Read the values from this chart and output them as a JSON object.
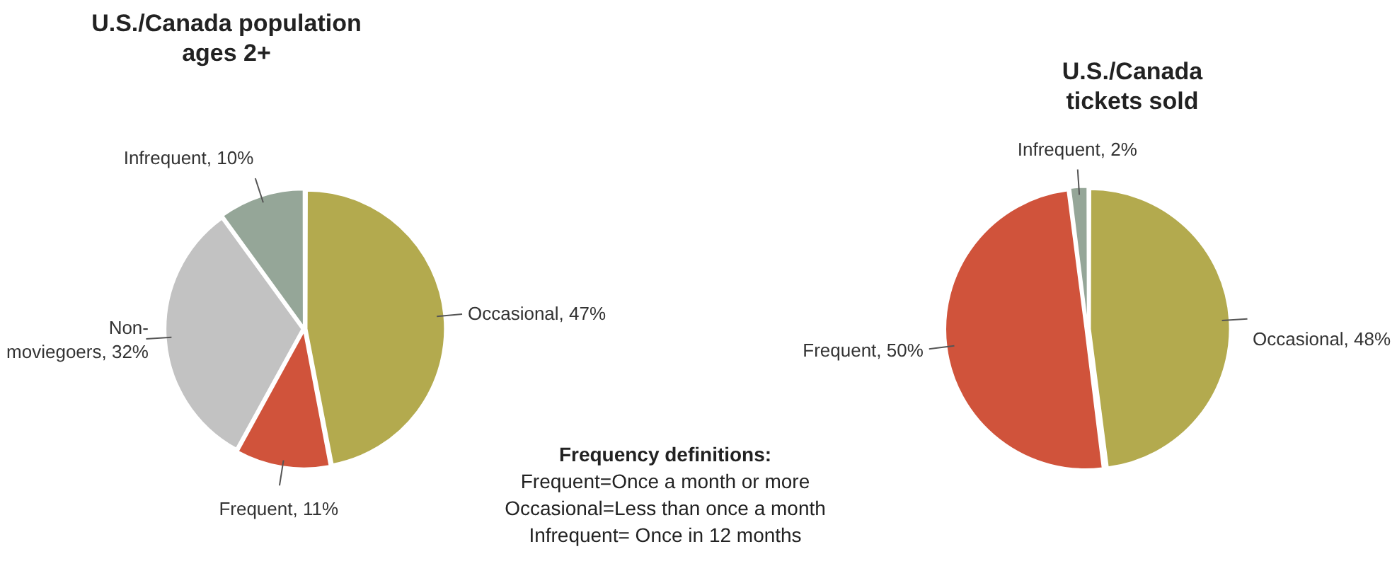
{
  "chart_data": [
    {
      "type": "pie",
      "title": "U.S./Canada population ages 2+",
      "categories": [
        "Occasional",
        "Frequent",
        "Non-moviegoers",
        "Infrequent"
      ],
      "values": [
        47,
        11,
        32,
        10
      ],
      "value_labels": [
        "47%",
        "11%",
        "32%",
        "10%"
      ],
      "colors": [
        "#b3aa4e",
        "#d0533b",
        "#c2c2c2",
        "#95a698"
      ],
      "legend": false
    },
    {
      "type": "pie",
      "title": "U.S./Canada tickets sold",
      "categories": [
        "Occasional",
        "Frequent",
        "Infrequent"
      ],
      "values": [
        48,
        50,
        2
      ],
      "value_labels": [
        "48%",
        "50%",
        "2%"
      ],
      "colors": [
        "#b3aa4e",
        "#d0533b",
        "#95a698"
      ],
      "legend": false
    },
    {
      "type": "other",
      "title": "Frequency definitions:",
      "annotations": [
        "Frequent=Once a month or more",
        "Occasional=Less than once a month",
        "Infrequent= Once in 12 months"
      ]
    }
  ]
}
